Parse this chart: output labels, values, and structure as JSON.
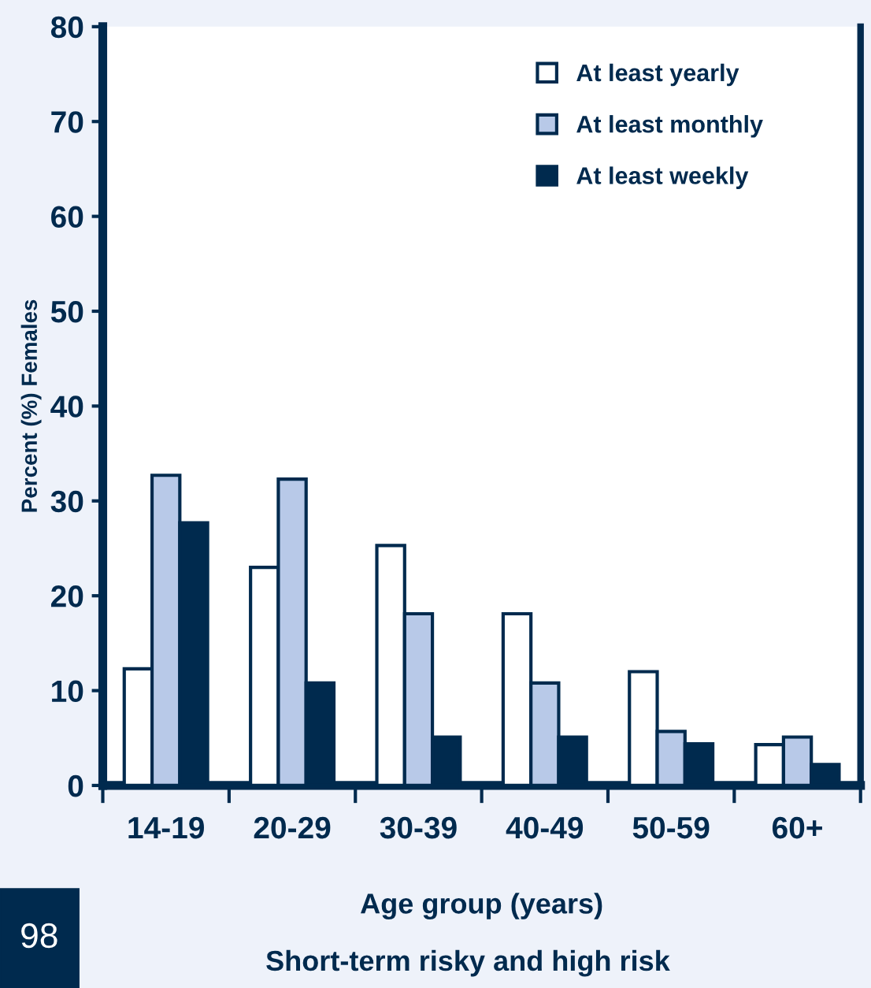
{
  "chart_data": {
    "type": "bar",
    "categories": [
      "14-19",
      "20-29",
      "30-39",
      "40-49",
      "50-59",
      "60+"
    ],
    "series": [
      {
        "name": "At least yearly",
        "color": "#ffffff",
        "values": [
          12.3,
          23.0,
          25.3,
          18.1,
          12.0,
          4.3
        ]
      },
      {
        "name": "At least monthly",
        "color": "#b8c9e8",
        "values": [
          32.7,
          32.3,
          18.1,
          10.8,
          5.7,
          5.1
        ]
      },
      {
        "name": "At least weekly",
        "color": "#002a4e",
        "values": [
          27.7,
          10.8,
          5.1,
          5.1,
          4.4,
          2.2
        ]
      }
    ],
    "ylim": [
      0,
      80
    ],
    "yticks": [
      0,
      10,
      20,
      30,
      40,
      50,
      60,
      70,
      80
    ],
    "xlabel": "Age group (years)",
    "ylabel": "Percent (%) Females",
    "annotations": [
      "Short-term risky and high risk",
      "98"
    ],
    "legend": "top right",
    "grid": false
  }
}
